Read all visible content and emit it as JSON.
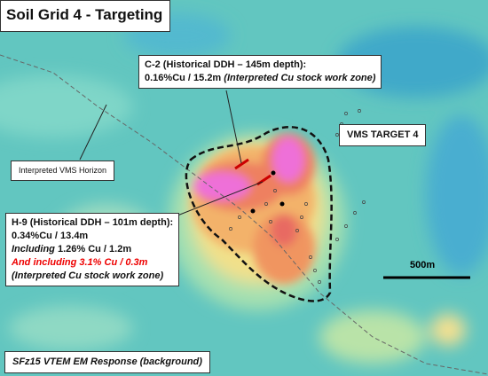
{
  "map": {
    "title": "Soil Grid 4 - Targeting",
    "c2": {
      "heading": "C-2 (Historical DDH – 145m depth):",
      "result": "0.16%Cu / 15.2m",
      "note": "(Interpreted Cu stock work zone)"
    },
    "target_label": "VMS TARGET 4",
    "horizon_label": "Interpreted VMS Horizon",
    "h9": {
      "heading": "H-9 (Historical DDH – 101m depth):",
      "result": "0.34%Cu / 13.4m",
      "including_word": "Including",
      "including_value": "1.26% Cu / 1.2m",
      "and_including": "And including 3.1% Cu / 0.3m",
      "note": "(Interpreted Cu stock work zone)"
    },
    "scale_label": "500m",
    "footer": "SFz15 VTEM EM Response (background)"
  }
}
